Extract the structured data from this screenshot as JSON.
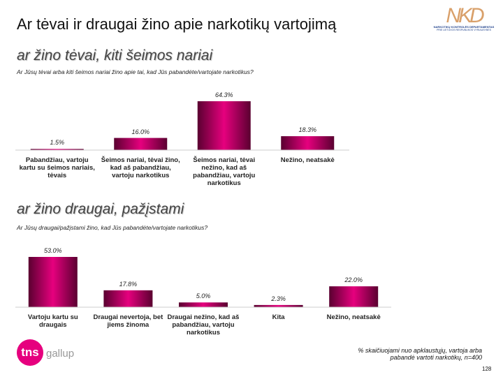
{
  "title": "Ar tėvai ir draugai žino apie narkotikų vartojimą",
  "logo": {
    "initials": "NKD",
    "line1": "NARKOTIKŲ KONTROLĖS DEPARTAMENTAS",
    "line2": "PRIE LIETUVOS RESPUBLIKOS VYRIAUSYBĖS"
  },
  "brand": {
    "tns": "tns",
    "gallup": "gallup"
  },
  "footnote": "% skaičiuojami nuo apklaustųjų, vartoja arba pabandė vartoti narkotikų, n=400",
  "page_number": "128",
  "chart_data": [
    {
      "type": "bar",
      "title": "ar žino tėvai, kiti šeimos nariai",
      "subtitle": "Ar Jūsų tėvai arba kiti šeimos nariai žino apie tai, kad Jūs pabandėte/vartojate narkotikus?",
      "categories": [
        "Pabandžiau, vartoju kartu su šeimos nariais, tėvais",
        "Šeimos nariai, tėvai žino, kad aš pabandžiau, vartoju narkotikus",
        "Šeimos nariai, tėvai nežino, kad aš pabandžiau, vartoju narkotikus",
        "Nežino, neatsakė"
      ],
      "values": [
        1.5,
        16.0,
        64.3,
        18.3
      ],
      "value_labels": [
        "1.5%",
        "16.0%",
        "64.3%",
        "18.3%"
      ],
      "color": "#e6007e"
    },
    {
      "type": "bar",
      "title": "ar žino draugai, pažįstami",
      "subtitle": "Ar Jūsų draugai/pažįstami žino, kad Jūs pabandėte/vartojate narkotikus?",
      "categories": [
        "Vartoju kartu su draugais",
        "Draugai nevertoja, bet jiems žinoma",
        "Draugai nežino, kad aš pabandžiau, vartoju narkotikus",
        "Kita",
        "Nežino, neatsakė"
      ],
      "values": [
        53.0,
        17.8,
        5.0,
        2.3,
        22.0
      ],
      "value_labels": [
        "53.0%",
        "17.8%",
        "5.0%",
        "2.3%",
        "22.0%"
      ],
      "color": "#e6007e"
    }
  ]
}
